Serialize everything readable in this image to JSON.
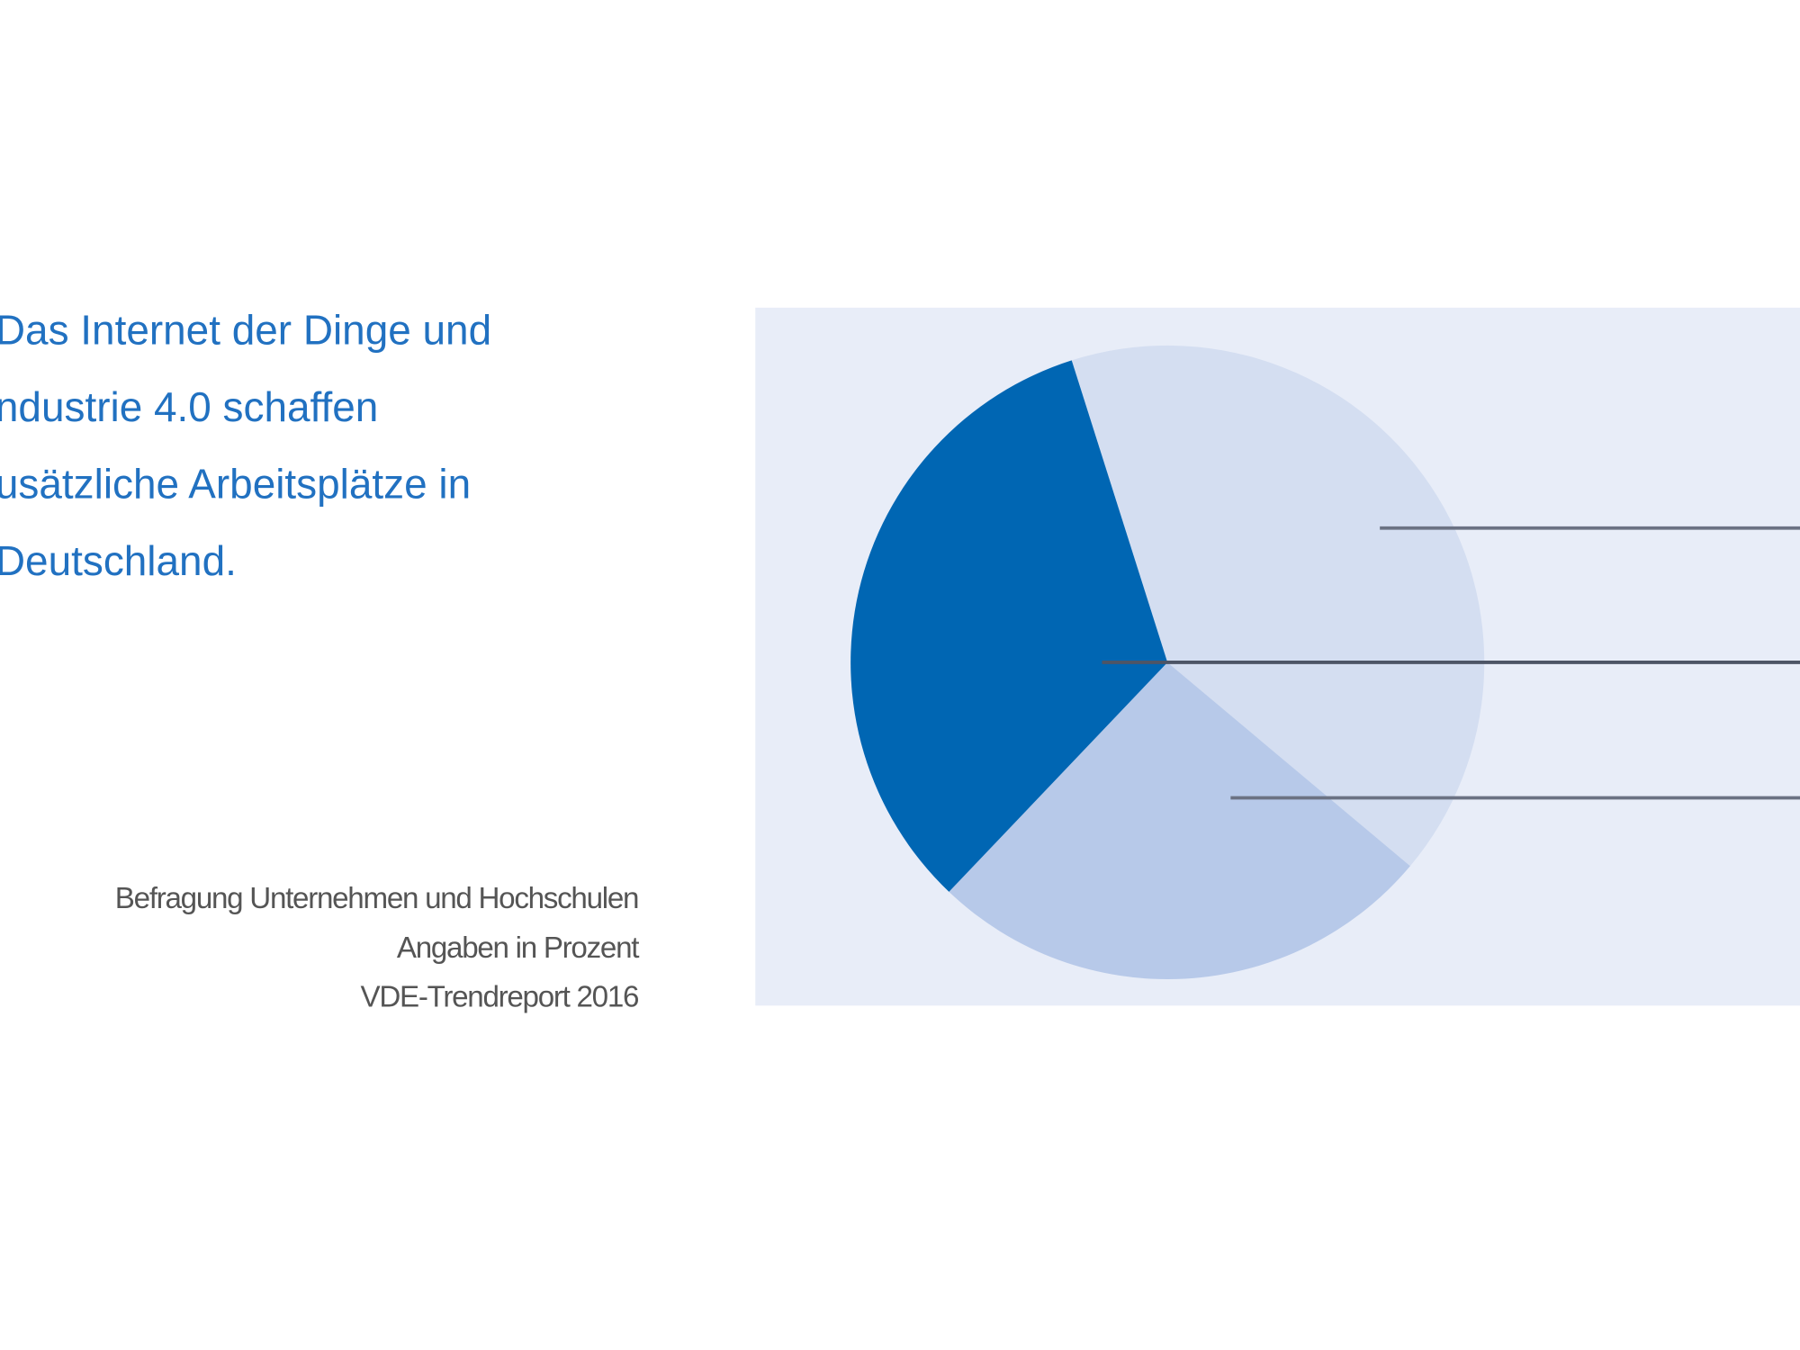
{
  "chart_data": {
    "type": "pie",
    "title_lines": [
      "Das Internet der Dinge und",
      "ndustrie 4.0 schaffen",
      "usätzliche Arbeitsplätze in",
      "Deutschland."
    ],
    "source_lines": [
      "Befragung Unternehmen und Hochschulen",
      "Angaben in Prozent",
      "VDE-Trendreport 2016"
    ],
    "categories": [
      null,
      null,
      null
    ],
    "values": [
      41,
      26,
      33
    ],
    "colors": [
      "#d4def1",
      "#b7c9e9",
      "#0066b3"
    ]
  }
}
